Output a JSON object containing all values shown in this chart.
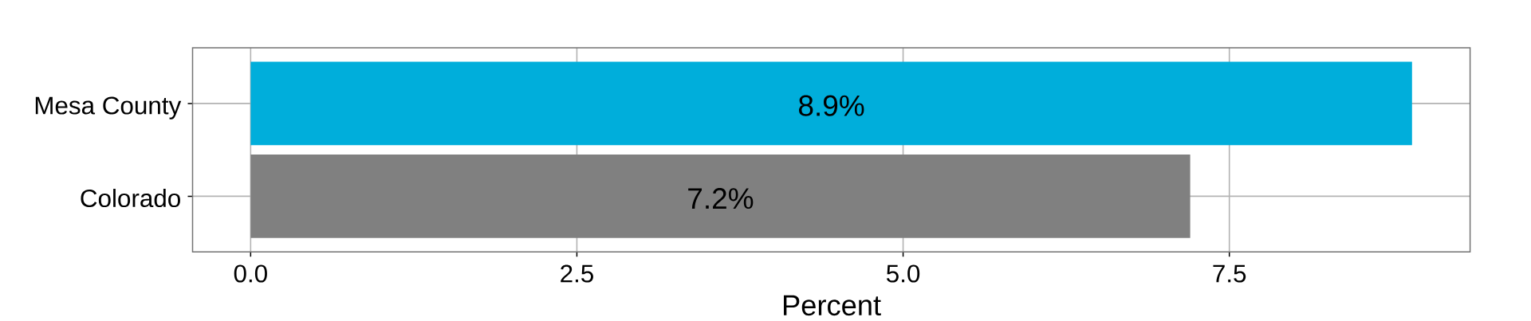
{
  "chart_data": {
    "type": "bar",
    "orientation": "horizontal",
    "categories": [
      "Mesa County",
      "Colorado"
    ],
    "values": [
      8.9,
      7.2
    ],
    "colors": [
      "#00aedb",
      "#808080"
    ],
    "value_labels": [
      "8.9%",
      "7.2%"
    ],
    "xlabel": "Percent",
    "xlim": [
      -0.445,
      9.345
    ],
    "xticks": [
      {
        "value": 0,
        "label": "0.0"
      },
      2.5,
      {
        "value": 5,
        "label": "5.0"
      },
      7.5
    ],
    "grid": true
  }
}
